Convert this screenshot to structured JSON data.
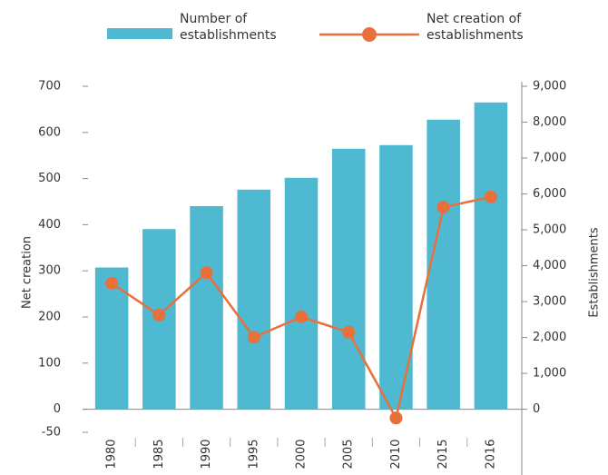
{
  "chart_data": {
    "type": "bar_line",
    "categories": [
      "1980",
      "1985",
      "1990",
      "1995",
      "2000",
      "2005",
      "2010",
      "2015",
      "2016"
    ],
    "series": [
      {
        "name": "Number of establishments",
        "type": "bar",
        "axis": "y2",
        "color": "#4fb9d1",
        "values": [
          3950,
          5020,
          5660,
          6120,
          6450,
          7260,
          7360,
          8070,
          8550
        ]
      },
      {
        "name": "Net creation of establishments",
        "type": "line",
        "axis": "y",
        "color": "#e8703a",
        "values": [
          273,
          204,
          296,
          156,
          200,
          167,
          -19,
          438,
          460
        ]
      }
    ],
    "ylabel": "Net creation",
    "y2label": "Establishments",
    "ylim": [
      -50,
      700
    ],
    "yticks": [
      -50,
      0,
      100,
      200,
      300,
      400,
      500,
      600,
      700
    ],
    "y2lim": [
      -643,
      9000
    ],
    "y2ticks": [
      0,
      {
        "value": 1000,
        "label": "1,000"
      },
      {
        "value": 2000,
        "label": "2,000"
      },
      {
        "value": 3000,
        "label": "3,000"
      },
      {
        "value": 4000,
        "label": "4,000"
      },
      {
        "value": 5000,
        "label": "5,000"
      },
      {
        "value": 6000,
        "label": "6,000"
      },
      {
        "value": 7000,
        "label": "7,000"
      },
      {
        "value": 8000,
        "label": "8,000"
      },
      {
        "value": 9000,
        "label": "9,000"
      }
    ],
    "legend": "top"
  }
}
